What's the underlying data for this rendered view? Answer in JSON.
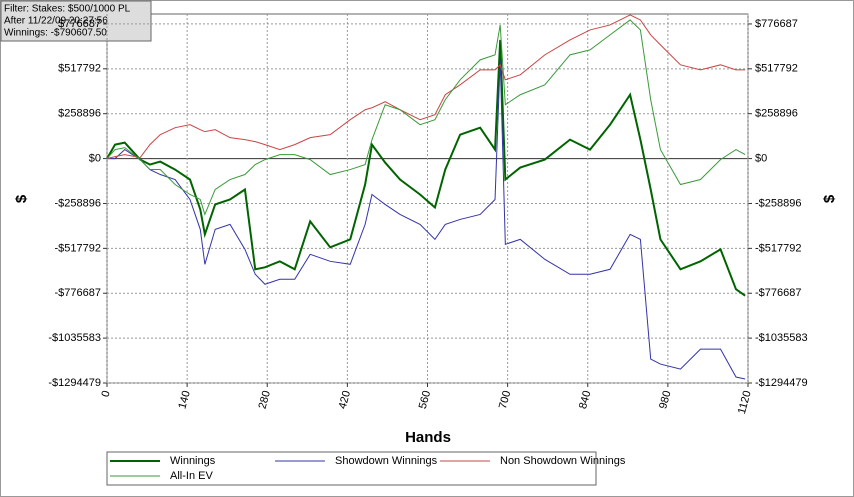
{
  "chart_data": {
    "type": "line",
    "info": [
      "Filter: Stakes: $500/1000 PL",
      "After 11/22/09 20:27:56",
      "Winnings: -$790607.50"
    ],
    "xlabel": "Hands",
    "ylabel": "$",
    "x": [
      0,
      14,
      31,
      58,
      75,
      93,
      119,
      145,
      163,
      171,
      189,
      215,
      241,
      259,
      276,
      302,
      328,
      355,
      390,
      425,
      451,
      463,
      486,
      512,
      547,
      573,
      591,
      617,
      652,
      678,
      687,
      696,
      722,
      765,
      809,
      844,
      879,
      914,
      932,
      950,
      967,
      1002,
      1037,
      1072,
      1099,
      1115
    ],
    "series": [
      {
        "name": "Winnings",
        "color": "#006400",
        "width": 2,
        "values": [
          0,
          80500,
          92000,
          -5800,
          -34500,
          -17300,
          -63300,
          -120800,
          -293400,
          -437200,
          -264600,
          -235900,
          -178300,
          -638600,
          -627100,
          -592600,
          -638600,
          -362400,
          -512000,
          -466000,
          -149600,
          80500,
          -23000,
          -120800,
          -207100,
          -281900,
          -63300,
          138100,
          178300,
          51800,
          684600,
          -120800,
          -51800,
          -5800,
          109300,
          51800,
          195600,
          368200,
          109300,
          -178300,
          -466000,
          -638600,
          -592600,
          -523500,
          -753600,
          -790608
        ]
      },
      {
        "name": "Showdown Winnings",
        "color": "#3333aa",
        "width": 1,
        "values": [
          0,
          0,
          51800,
          -5800,
          -63300,
          -92000,
          -120800,
          -235900,
          -408500,
          -609800,
          -408500,
          -379700,
          -523500,
          -667300,
          -724900,
          -696100,
          -696100,
          -552300,
          -592600,
          -609800,
          -379700,
          -207100,
          -264600,
          -322200,
          -379700,
          -466000,
          -379700,
          -350900,
          -322200,
          -235900,
          569500,
          -494700,
          -466000,
          -581100,
          -667300,
          -667300,
          -638600,
          -437200,
          -466000,
          -1156400,
          -1185200,
          -1214000,
          -1098900,
          -1098900,
          -1260000,
          -1271400
        ]
      },
      {
        "name": "Non Showdown Winnings",
        "color": "#cc4444",
        "width": 1,
        "values": [
          0,
          11500,
          23000,
          5800,
          80500,
          138100,
          178300,
          195600,
          166800,
          155300,
          166800,
          120800,
          109300,
          97800,
          80500,
          51800,
          80500,
          120800,
          138100,
          224400,
          281900,
          293400,
          327900,
          281900,
          224400,
          253200,
          368200,
          425700,
          512000,
          512000,
          540800,
          454500,
          483300,
          598300,
          684600,
          742100,
          770900,
          828400,
          799600,
          713300,
          655800,
          540800,
          512000,
          540800,
          512000,
          512000
        ]
      },
      {
        "name": "All-In EV",
        "color": "#3a9a3a",
        "width": 1,
        "values": [
          0,
          51800,
          63300,
          -5800,
          -63300,
          -63300,
          -149600,
          -207100,
          -235900,
          -322200,
          -178300,
          -120800,
          -92000,
          -34500,
          -5800,
          23000,
          23000,
          -5800,
          -92000,
          -63300,
          -34500,
          109300,
          310700,
          281900,
          195600,
          224400,
          339400,
          454500,
          569500,
          598300,
          770900,
          310700,
          368200,
          425700,
          598300,
          627100,
          713400,
          799700,
          742100,
          339400,
          51800,
          -149600,
          -120800,
          -5800,
          51800,
          23000
        ]
      }
    ],
    "xlim": [
      0,
      1120
    ],
    "xticks": [
      0,
      140,
      280,
      420,
      560,
      700,
      840,
      980,
      1120
    ],
    "ylim": [
      -1294479,
      834000
    ],
    "yticks": [
      {
        "value": -1294479,
        "label": "-$1294479"
      },
      {
        "value": -1035583,
        "label": "-$1035583"
      },
      {
        "value": -776687,
        "label": "-$776687"
      },
      {
        "value": -517792,
        "label": "-$517792"
      },
      {
        "value": -258896,
        "label": "-$258896"
      },
      {
        "value": 0,
        "label": "$0"
      },
      {
        "value": 258896,
        "label": "$258896"
      },
      {
        "value": 517792,
        "label": "$517792"
      },
      {
        "value": 776687,
        "label": "$776687"
      }
    ],
    "grid": true
  }
}
